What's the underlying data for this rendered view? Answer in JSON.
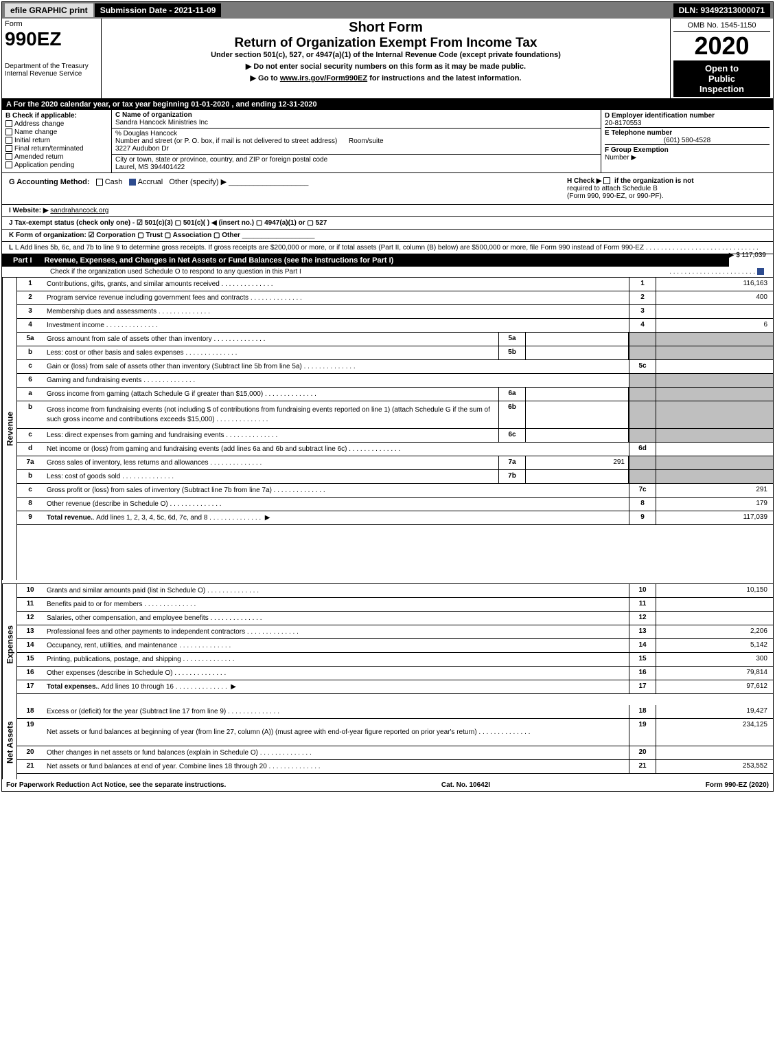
{
  "top_bar": {
    "efile_label": "efile GRAPHIC print",
    "submission_date": "Submission Date - 2021-11-09",
    "dln": "DLN: 93492313000071"
  },
  "header": {
    "form_label": "Form",
    "form_number": "990EZ",
    "short_form": "Short Form",
    "return_title": "Return of Organization Exempt From Income Tax",
    "under_section": "Under section 501(c), 527, or 4947(a)(1) of the Internal Revenue Code (except private foundations)",
    "warning1": "▶ Do not enter social security numbers on this form as it may be made public.",
    "warning2_prefix": "▶ Go to ",
    "warning2_link": "www.irs.gov/Form990EZ",
    "warning2_suffix": " for instructions and the latest information.",
    "dept1": "Department of the Treasury",
    "dept2": "Internal Revenue Service",
    "omb": "OMB No. 1545-1150",
    "year": "2020",
    "open1": "Open to",
    "open2": "Public",
    "open3": "Inspection"
  },
  "calendar_year": "A For the 2020 calendar year, or tax year beginning 01-01-2020 , and ending 12-31-2020",
  "section_b": {
    "title": "B  Check if applicable:",
    "opts": [
      "Address change",
      "Name change",
      "Initial return",
      "Final return/terminated",
      "Amended return",
      "Application pending"
    ]
  },
  "section_c": {
    "name_label": "C Name of organization",
    "org_name": "Sandra Hancock Ministries Inc",
    "care_of": "% Douglas Hancock",
    "street_label": "Number and street (or P. O. box, if mail is not delivered to street address)",
    "room_label": "Room/suite",
    "street": "3227 Audubon Dr",
    "city_label": "City or town, state or province, country, and ZIP or foreign postal code",
    "city": "Laurel, MS  394401422"
  },
  "section_d": {
    "ein_label": "D Employer identification number",
    "ein": "20-8170553",
    "phone_label": "E Telephone number",
    "phone": "(601) 580-4528",
    "group_label": "F Group Exemption",
    "group_num_label": "Number  ▶"
  },
  "section_g": {
    "accounting_label": "G Accounting Method:",
    "cash": "Cash",
    "accrual": "Accrual",
    "other": "Other (specify) ▶",
    "h_check": "H  Check ▶",
    "h_text1": "if the organization is not",
    "h_text2": "required to attach Schedule B",
    "h_text3": "(Form 990, 990-EZ, or 990-PF)."
  },
  "website": {
    "label": "I Website: ▶",
    "url": "sandrahancock.org"
  },
  "tax_exempt": "J Tax-exempt status (check only one) -  ☑ 501(c)(3)  ▢ 501(c)(  ) ◀ (insert no.)  ▢ 4947(a)(1) or  ▢ 527",
  "form_org": "K Form of organization:   ☑ Corporation   ▢ Trust   ▢ Association   ▢ Other",
  "line_l": {
    "text": "L Add lines 5b, 6c, and 7b to line 9 to determine gross receipts. If gross receipts are $200,000 or more, or if total assets (Part II, column (B) below) are $500,000 or more, file Form 990 instead of Form 990-EZ",
    "amount": "▶ $ 117,039"
  },
  "part1": {
    "label": "Part I",
    "title": "Revenue, Expenses, and Changes in Net Assets or Fund Balances (see the instructions for Part I)",
    "check_text": "Check if the organization used Schedule O to respond to any question in this Part I"
  },
  "side_labels": {
    "revenue": "Revenue",
    "expenses": "Expenses",
    "net_assets": "Net Assets"
  },
  "revenue_lines": [
    {
      "num": "1",
      "desc": "Contributions, gifts, grants, and similar amounts received",
      "ref": "1",
      "amount": "116,163"
    },
    {
      "num": "2",
      "desc": "Program service revenue including government fees and contracts",
      "ref": "2",
      "amount": "400"
    },
    {
      "num": "3",
      "desc": "Membership dues and assessments",
      "ref": "3",
      "amount": ""
    },
    {
      "num": "4",
      "desc": "Investment income",
      "ref": "4",
      "amount": "6"
    },
    {
      "num": "5a",
      "desc": "Gross amount from sale of assets other than inventory",
      "sub": "5a",
      "subval": "",
      "shaded": true
    },
    {
      "num": "b",
      "desc": "Less: cost or other basis and sales expenses",
      "sub": "5b",
      "subval": "",
      "shaded": true
    },
    {
      "num": "c",
      "desc": "Gain or (loss) from sale of assets other than inventory (Subtract line 5b from line 5a)",
      "ref": "5c",
      "amount": ""
    },
    {
      "num": "6",
      "desc": "Gaming and fundraising events",
      "shaded": true
    },
    {
      "num": "a",
      "desc": "Gross income from gaming (attach Schedule G if greater than $15,000)",
      "sub": "6a",
      "subval": "",
      "shaded": true
    },
    {
      "num": "b",
      "desc": "Gross income from fundraising events (not including $                         of contributions from fundraising events reported on line 1) (attach Schedule G if the sum of such gross income and contributions exceeds $15,000)",
      "sub": "6b",
      "subval": "",
      "shaded": true,
      "multiline": true
    },
    {
      "num": "c",
      "desc": "Less: direct expenses from gaming and fundraising events",
      "sub": "6c",
      "subval": "",
      "shaded": true
    },
    {
      "num": "d",
      "desc": "Net income or (loss) from gaming and fundraising events (add lines 6a and 6b and subtract line 6c)",
      "ref": "6d",
      "amount": ""
    },
    {
      "num": "7a",
      "desc": "Gross sales of inventory, less returns and allowances",
      "sub": "7a",
      "subval": "291",
      "shaded": true
    },
    {
      "num": "b",
      "desc": "Less: cost of goods sold",
      "sub": "7b",
      "subval": "",
      "shaded": true
    },
    {
      "num": "c",
      "desc": "Gross profit or (loss) from sales of inventory (Subtract line 7b from line 7a)",
      "ref": "7c",
      "amount": "291"
    },
    {
      "num": "8",
      "desc": "Other revenue (describe in Schedule O)",
      "ref": "8",
      "amount": "179"
    },
    {
      "num": "9",
      "desc": "Total revenue. Add lines 1, 2, 3, 4, 5c, 6d, 7c, and 8",
      "ref": "9",
      "amount": "117,039",
      "bold": true,
      "arrow": true
    }
  ],
  "expense_lines": [
    {
      "num": "10",
      "desc": "Grants and similar amounts paid (list in Schedule O)",
      "ref": "10",
      "amount": "10,150"
    },
    {
      "num": "11",
      "desc": "Benefits paid to or for members",
      "ref": "11",
      "amount": ""
    },
    {
      "num": "12",
      "desc": "Salaries, other compensation, and employee benefits",
      "ref": "12",
      "amount": ""
    },
    {
      "num": "13",
      "desc": "Professional fees and other payments to independent contractors",
      "ref": "13",
      "amount": "2,206"
    },
    {
      "num": "14",
      "desc": "Occupancy, rent, utilities, and maintenance",
      "ref": "14",
      "amount": "5,142"
    },
    {
      "num": "15",
      "desc": "Printing, publications, postage, and shipping",
      "ref": "15",
      "amount": "300"
    },
    {
      "num": "16",
      "desc": "Other expenses (describe in Schedule O)",
      "ref": "16",
      "amount": "79,814"
    },
    {
      "num": "17",
      "desc": "Total expenses. Add lines 10 through 16",
      "ref": "17",
      "amount": "97,612",
      "bold": true,
      "arrow": true
    }
  ],
  "net_assets_lines": [
    {
      "num": "18",
      "desc": "Excess or (deficit) for the year (Subtract line 17 from line 9)",
      "ref": "18",
      "amount": "19,427"
    },
    {
      "num": "19",
      "desc": "Net assets or fund balances at beginning of year (from line 27, column (A)) (must agree with end-of-year figure reported on prior year's return)",
      "ref": "19",
      "amount": "234,125",
      "multiline": true
    },
    {
      "num": "20",
      "desc": "Other changes in net assets or fund balances (explain in Schedule O)",
      "ref": "20",
      "amount": ""
    },
    {
      "num": "21",
      "desc": "Net assets or fund balances at end of year. Combine lines 18 through 20",
      "ref": "21",
      "amount": "253,552"
    }
  ],
  "footer": {
    "left": "For Paperwork Reduction Act Notice, see the separate instructions.",
    "center": "Cat. No. 10642I",
    "right": "Form 990-EZ (2020)"
  },
  "colors": {
    "black": "#000000",
    "gray_bg": "#bfbfbf",
    "top_gray": "#7a7a7a",
    "check_blue": "#2d4b8e"
  }
}
